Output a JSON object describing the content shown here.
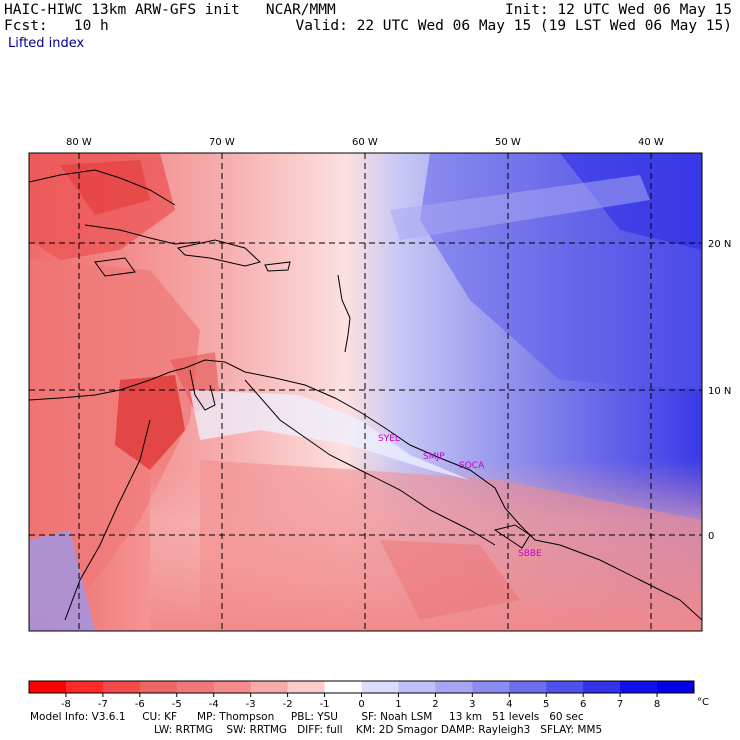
{
  "header": {
    "model_title": "HAIC-HIWC 13km ARW-GFS init   NCAR/MMM",
    "forecast": "Fcst:   10 h",
    "init": "Init: 12 UTC Wed 06 May 15",
    "valid": "Valid: 22 UTC Wed 06 May 15 (19 LST Wed 06 May 15)",
    "variable": "Lifted index"
  },
  "map": {
    "lon_labels": [
      "80 W",
      "70 W",
      "60 W",
      "50 W",
      "40 W"
    ],
    "lat_labels": [
      "20 N",
      "10 N",
      "0"
    ],
    "sites": [
      "SYEL",
      "SMJP",
      "SOCA",
      "SBBE"
    ],
    "colors": {
      "strong_negative": "#e8323c",
      "negative": "#f08c8c",
      "neutral": "#ffffff",
      "positive": "#b4b4f5",
      "strong_positive": "#2828e6",
      "coastline": "#000000"
    }
  },
  "colorbar": {
    "tick_labels": [
      "-8",
      "-7",
      "-6",
      "-5",
      "-4",
      "-3",
      "-2",
      "-1",
      "0",
      "1",
      "2",
      "3",
      "4",
      "5",
      "6",
      "7",
      "8"
    ],
    "unit": "°C",
    "colors": [
      "#ff0000",
      "#ff2a2a",
      "#f44a4a",
      "#f06666",
      "#f07878",
      "#f48c8c",
      "#f8aaaa",
      "#fccccc",
      "#ffffff",
      "#dcdcff",
      "#c0c0f8",
      "#a6a6f4",
      "#8c8cf0",
      "#6e6eec",
      "#5050ea",
      "#3232ea",
      "#1010e8",
      "#0000e6"
    ]
  },
  "model_info": {
    "line1": "Model Info: V3.6.1     CU: KF      MP: Thompson     PBL: YSU       SF: Noah LSM     13 km   51 levels   60 sec",
    "line2": "LW: RRTMG    SW: RRTMG   DIFF: full    KM: 2D Smagor DAMP: Rayleigh3   SFLAY: MM5"
  }
}
